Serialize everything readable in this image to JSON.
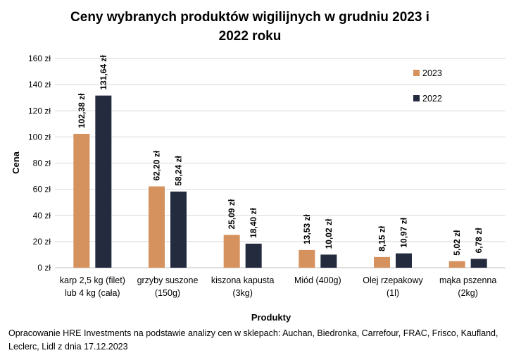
{
  "chart_data": {
    "type": "bar",
    "title_lines": [
      "Ceny wybranych produktów wigilijnych w grudniu 2023 i",
      "2022 roku"
    ],
    "xlabel": "Produkty",
    "ylabel": "Cena",
    "ylim": [
      0,
      160
    ],
    "yticks": [
      0,
      20,
      40,
      60,
      80,
      100,
      120,
      140,
      160
    ],
    "ytick_labels": [
      "0 zł",
      "20 zł",
      "40 zł",
      "60 zł",
      "80 zł",
      "100 zł",
      "120 zł",
      "140 zł",
      "160 zł"
    ],
    "categories": [
      [
        "karp 2,5 kg (filet)",
        "lub 4 kg (cała)"
      ],
      [
        "grzyby suszone",
        "(150g)"
      ],
      [
        "kiszona kapusta",
        "(3kg)"
      ],
      [
        "Miód (400g)"
      ],
      [
        "Olej rzepakowy",
        "(1l)"
      ],
      [
        "mąka pszenna",
        "(2kg)"
      ]
    ],
    "series": [
      {
        "name": "2023",
        "color": "#D5925E",
        "values": [
          102.38,
          62.2,
          25.09,
          13.53,
          8.15,
          5.02
        ],
        "labels": [
          "102,38 zł",
          "62,20 zł",
          "25,09 zł",
          "13,53 zł",
          "8,15 zł",
          "5,02 zł"
        ]
      },
      {
        "name": "2022",
        "color": "#252B3F",
        "values": [
          131.64,
          58.24,
          18.4,
          10.02,
          10.97,
          6.78
        ],
        "labels": [
          "131,64 zł",
          "58,24 zł",
          "18,40 zł",
          "10,02 zł",
          "10,97 zł",
          "6,78 zł"
        ]
      }
    ],
    "grid": true,
    "legend_position": "top-right"
  },
  "source_note": "Opracowanie HRE Investments na podstawie analizy cen w sklepach: Auchan, Biedronka, Carrefour, FRAC, Frisco, Kaufland, Leclerc, Lidl z dnia 17.12.2023"
}
